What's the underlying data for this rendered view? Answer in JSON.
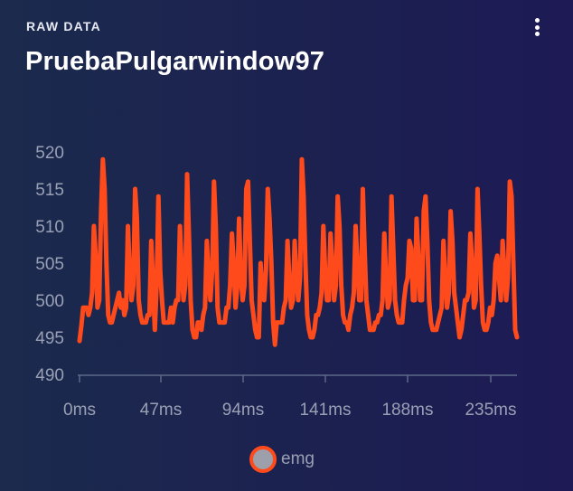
{
  "card": {
    "label": "RAW DATA",
    "title": "PruebaPulgarwindow97",
    "menu_icon": "more-vertical-icon"
  },
  "colors": {
    "series": "#ff4a1c",
    "axis_text": "#9aa0b4",
    "axis_line": "#5d6888",
    "legend_marker_fill": "#9da0ab"
  },
  "chart_data": {
    "type": "line",
    "title": "",
    "xlabel": "",
    "ylabel": "",
    "ylim": [
      490,
      520
    ],
    "yticks": [
      "490",
      "495",
      "500",
      "505",
      "510",
      "515",
      "520"
    ],
    "xticks": [
      "0ms",
      "47ms",
      "94ms",
      "141ms",
      "188ms",
      "235ms"
    ],
    "xlim": [
      0,
      239
    ],
    "grid": false,
    "legend_position": "bottom",
    "series": [
      {
        "name": "emg",
        "values": [
          494.5,
          496.5,
          499,
          499,
          499,
          498,
          499,
          501,
          510,
          506,
          499,
          500,
          512,
          519,
          515,
          505,
          498,
          497,
          497,
          498,
          499,
          500,
          501,
          499,
          500,
          498,
          499,
          510,
          504,
          500,
          502,
          515,
          511,
          500,
          498,
          497,
          497,
          497,
          498,
          498,
          508,
          502,
          496,
          502,
          514,
          504,
          500,
          497,
          497,
          497,
          497,
          499,
          497,
          499,
          500,
          500,
          510,
          504,
          500,
          502,
          517,
          509,
          500,
          496,
          495,
          495,
          497,
          497,
          496,
          498,
          499,
          508,
          503,
          500,
          504,
          516,
          510,
          499,
          497,
          497,
          497,
          497,
          499,
          499,
          502,
          509,
          505,
          499,
          502,
          511,
          503,
          500,
          502,
          515,
          516,
          508,
          500,
          498,
          496,
          495,
          495,
          505,
          501,
          500,
          504,
          515,
          511,
          505,
          497,
          494,
          497,
          497,
          497,
          497,
          499,
          500,
          508,
          503,
          499,
          500,
          508,
          503,
          500,
          503,
          519,
          514,
          505,
          498,
          496,
          495,
          495,
          496,
          498,
          498,
          499,
          501,
          510,
          504,
          500,
          500,
          509,
          505,
          500,
          502,
          514,
          510,
          502,
          498,
          497,
          497,
          496,
          498,
          499,
          501,
          510,
          505,
          500,
          500,
          515,
          507,
          500,
          498,
          496,
          496,
          496,
          497,
          497,
          498,
          498,
          500,
          509,
          503,
          499,
          500,
          514,
          507,
          500,
          498,
          497,
          497,
          497,
          500,
          502,
          503,
          508,
          507,
          500,
          500,
          511,
          506,
          500,
          500,
          512,
          514,
          508,
          500,
          497,
          496,
          496,
          496,
          497,
          498,
          499,
          508,
          503,
          499,
          501,
          512,
          508,
          501,
          499,
          497,
          495,
          496,
          498,
          500,
          500,
          501,
          509,
          505,
          499,
          500,
          515,
          509,
          502,
          497,
          496,
          496,
          497,
          499,
          498,
          500,
          505,
          506,
          503,
          500,
          508,
          504,
          500,
          503,
          516,
          514,
          505,
          496,
          495
        ]
      }
    ]
  }
}
